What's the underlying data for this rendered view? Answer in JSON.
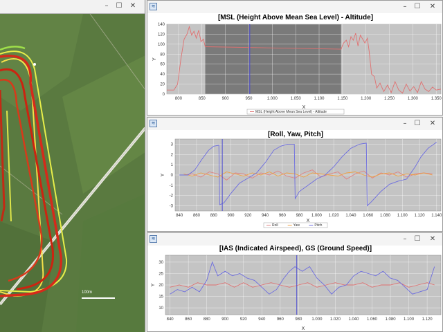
{
  "map_window": {
    "title_bar_icons": [
      "minimize-icon",
      "maximize-icon",
      "close-icon"
    ],
    "scale_label": "100m"
  },
  "charts": [
    {
      "name": "altitude",
      "window_controls": [
        "minimize-icon",
        "maximize-icon",
        "close-icon"
      ],
      "chart_data": {
        "type": "line",
        "title": "[MSL (Height Above Mean Sea Level) - Altitude]",
        "xlabel": "X",
        "ylabel": "Y",
        "xlim": [
          775,
          1360
        ],
        "ylim": [
          0,
          140
        ],
        "xticks": [
          800,
          850,
          900,
          950,
          1000,
          1050,
          1100,
          1150,
          1200,
          1250,
          1300,
          1350
        ],
        "xtick_labels": [
          "800",
          "850",
          "900",
          "950",
          "1.000",
          "1.050",
          "1.100",
          "1.150",
          "1.200",
          "1.250",
          "1.300",
          "1.350"
        ],
        "yticks": [
          0,
          20,
          40,
          60,
          80,
          100,
          120,
          140
        ],
        "shaded_range": [
          857,
          1147
        ],
        "marker_x": 952,
        "series": [
          {
            "name": "MSL (Height Above Mean Sea Level) - Altitude",
            "color": "#e07070",
            "x": [
              775,
              790,
              798,
              805,
              812,
              818,
              823,
              828,
              833,
              838,
              843,
              848,
              853,
              857,
              1147,
              1152,
              1158,
              1163,
              1168,
              1173,
              1178,
              1183,
              1188,
              1193,
              1198,
              1203,
              1207,
              1212,
              1218,
              1223,
              1230,
              1238,
              1246,
              1254,
              1262,
              1270,
              1278,
              1286,
              1294,
              1302,
              1310,
              1318,
              1326,
              1334,
              1342,
              1350,
              1360
            ],
            "values": [
              8,
              8,
              20,
              70,
              110,
              120,
              135,
              118,
              126,
              112,
              128,
              105,
              110,
              95,
              90,
              102,
              108,
              95,
              115,
              108,
              122,
              96,
              118,
              110,
              102,
              112,
              85,
              40,
              35,
              12,
              22,
              5,
              18,
              3,
              25,
              8,
              2,
              20,
              6,
              15,
              3,
              25,
              10,
              5,
              14,
              8,
              10
            ]
          }
        ]
      }
    },
    {
      "name": "attitude",
      "window_controls": [
        "minimize-icon",
        "maximize-icon",
        "close-icon"
      ],
      "chart_data": {
        "type": "line",
        "title": "[Roll, Yaw, Pitch]",
        "xlabel": "X",
        "ylabel": "Y",
        "xlim": [
          835,
          1145
        ],
        "ylim": [
          -3.5,
          3.5
        ],
        "xticks": [
          840,
          860,
          880,
          900,
          920,
          940,
          960,
          980,
          1000,
          1020,
          1040,
          1060,
          1080,
          1100,
          1120,
          1140
        ],
        "xtick_labels": [
          "840",
          "860",
          "880",
          "900",
          "920",
          "940",
          "960",
          "980",
          "1.000",
          "1.020",
          "1.040",
          "1.060",
          "1.080",
          "1.100",
          "1.120",
          "1.140"
        ],
        "yticks": [
          -3,
          -2,
          -1,
          0,
          1,
          2,
          3
        ],
        "marker_x": 890,
        "series": [
          {
            "name": "Roll",
            "color": "#e08080",
            "x": [
              845,
              855,
              865,
              875,
              885,
              895,
              905,
              915,
              925,
              935,
              945,
              955,
              965,
              975,
              985,
              995,
              1005,
              1015,
              1025,
              1035,
              1045,
              1055,
              1065,
              1075,
              1085,
              1095,
              1105,
              1115,
              1125,
              1135
            ],
            "values": [
              0,
              0.1,
              -0.2,
              0.3,
              0.1,
              -0.5,
              0.2,
              0.1,
              -0.3,
              0.2,
              0,
              0.4,
              -0.1,
              -0.3,
              0.2,
              0.5,
              -0.2,
              0.1,
              0.3,
              -0.4,
              0.1,
              0.4,
              -0.3,
              0.2,
              0,
              0.3,
              -0.2,
              0.1,
              0.2,
              0.1
            ]
          },
          {
            "name": "Yaw",
            "color": "#f0a040",
            "x": [
              845,
              855,
              865,
              875,
              885,
              895,
              905,
              915,
              925,
              935,
              945,
              955,
              965,
              975,
              985,
              995,
              1005,
              1015,
              1025,
              1035,
              1045,
              1055,
              1065,
              1075,
              1085,
              1095,
              1105,
              1115,
              1125,
              1135
            ],
            "values": [
              0.1,
              -0.1,
              0.2,
              0,
              -0.2,
              0.3,
              0.1,
              -0.1,
              0.2,
              0,
              0.3,
              -0.1,
              0.2,
              0.1,
              -0.2,
              0.2,
              0.1,
              0,
              -0.1,
              0.2,
              0.3,
              0,
              -0.2,
              0.1,
              0.2,
              -0.1,
              0.1,
              0,
              0.2,
              0
            ]
          },
          {
            "name": "Pitch",
            "color": "#6c6ce0",
            "x": [
              840,
              850,
              858,
              866,
              874,
              880,
              886,
              887,
              892,
              900,
              910,
              920,
              930,
              940,
              950,
              958,
              966,
              974,
              975,
              980,
              990,
              1000,
              1010,
              1020,
              1030,
              1040,
              1050,
              1058,
              1059,
              1064,
              1075,
              1085,
              1095,
              1105,
              1115,
              1122,
              1130,
              1140
            ],
            "values": [
              0,
              0,
              0.5,
              1.5,
              2.4,
              2.8,
              2.9,
              -2.9,
              -2.7,
              -1.8,
              -0.8,
              -0.3,
              0.2,
              1.2,
              2.4,
              2.8,
              3.0,
              3.0,
              -2.3,
              -1.6,
              -1.0,
              -0.4,
              0,
              0.8,
              1.8,
              2.6,
              3.0,
              3.1,
              -3.0,
              -2.6,
              -1.6,
              -0.9,
              -0.6,
              -0.4,
              0.8,
              1.8,
              2.6,
              3.2
            ]
          }
        ]
      }
    },
    {
      "name": "airspeed",
      "window_controls": [
        "minimize-icon",
        "maximize-icon",
        "close-icon"
      ],
      "chart_data": {
        "type": "line",
        "title": "[IAS (Indicated Airspeed), GS (Ground Speed)]",
        "xlabel": "X",
        "ylabel": "Y",
        "xlim": [
          835,
          1135
        ],
        "ylim": [
          7,
          33
        ],
        "xticks": [
          840,
          860,
          880,
          900,
          920,
          940,
          960,
          980,
          1000,
          1020,
          1040,
          1060,
          1080,
          1100,
          1120
        ],
        "xtick_labels": [
          "840",
          "860",
          "880",
          "900",
          "920",
          "940",
          "960",
          "980",
          "1.000",
          "1.020",
          "1.040",
          "1.060",
          "1.080",
          "1.100",
          "1.120"
        ],
        "yticks": [
          10,
          15,
          20,
          25,
          30
        ],
        "marker_x": 978,
        "series": [
          {
            "name": "IAS",
            "color": "#e07070",
            "x": [
              840,
              850,
              860,
              870,
              880,
              890,
              900,
              910,
              920,
              930,
              940,
              950,
              960,
              970,
              980,
              990,
              1000,
              1010,
              1020,
              1030,
              1040,
              1050,
              1060,
              1070,
              1080,
              1090,
              1100,
              1110,
              1120,
              1128
            ],
            "values": [
              19,
              20,
              19,
              21,
              20,
              20,
              21,
              19,
              21,
              19,
              20,
              21,
              20,
              19,
              20,
              21,
              19,
              20,
              21,
              20,
              20,
              21,
              19,
              20,
              20,
              21,
              19,
              20,
              21,
              20
            ]
          },
          {
            "name": "GS",
            "color": "#6c6ce0",
            "x": [
              840,
              848,
              856,
              864,
              872,
              880,
              886,
              892,
              900,
              908,
              916,
              924,
              932,
              940,
              948,
              956,
              964,
              970,
              976,
              984,
              992,
              1000,
              1008,
              1016,
              1024,
              1032,
              1040,
              1048,
              1056,
              1064,
              1072,
              1080,
              1088,
              1096,
              1104,
              1112,
              1120,
              1128
            ],
            "values": [
              16,
              18,
              17,
              19,
              17,
              22,
              30,
              24,
              26,
              24,
              25,
              23,
              22,
              19,
              16,
              18,
              23,
              26,
              28,
              26,
              28,
              23,
              20,
              16,
              19,
              20,
              24,
              26,
              25,
              24,
              26,
              23,
              22,
              19,
              16,
              17,
              18,
              28
            ]
          }
        ]
      }
    }
  ]
}
